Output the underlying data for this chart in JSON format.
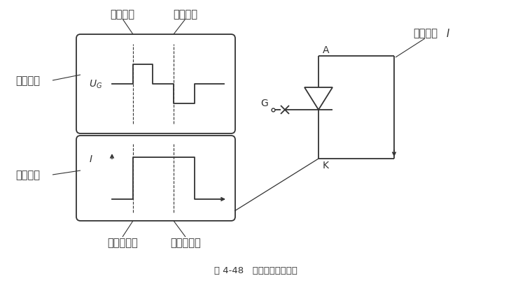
{
  "title": "图 4-48   可关断晶闸管原理",
  "bg_color": "#ffffff",
  "line_color": "#333333",
  "labels": {
    "control_voltage": "控制电压",
    "on_pulse": "导通脉冲",
    "off_pulse": "关断脉冲",
    "on_current_left": "导通电流",
    "thyristor_on": "晶闸管导通",
    "thyristor_off": "晶闸管关断",
    "G": "G",
    "A": "A",
    "K": "K",
    "conduction_current": "导通电流",
    "I_label": "I",
    "UG": "$U_G$",
    "I": "$I$"
  }
}
